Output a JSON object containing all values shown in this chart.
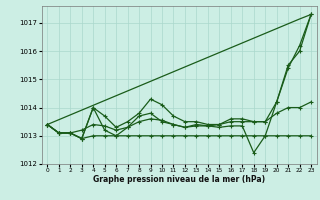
{
  "xlabel": "Graphe pression niveau de la mer (hPa)",
  "background_color": "#cceee4",
  "grid_color": "#aad8cc",
  "line_color": "#1a5c1a",
  "x": [
    0,
    1,
    2,
    3,
    4,
    5,
    6,
    7,
    8,
    9,
    10,
    11,
    12,
    13,
    14,
    15,
    16,
    17,
    18,
    19,
    20,
    21,
    22,
    23
  ],
  "series_diagonal": [
    1013.4,
    1013.57,
    1013.74,
    1013.91,
    1014.08,
    1014.25,
    1014.42,
    1014.59,
    1014.76,
    1014.93,
    1015.1,
    1015.27,
    1015.44,
    1015.61,
    1015.78,
    1015.95,
    1016.12,
    1016.29,
    1016.46,
    1016.63,
    1016.8,
    1016.97,
    1017.14,
    1017.3
  ],
  "series_upper": [
    1013.4,
    1013.1,
    1013.1,
    1012.9,
    1014.0,
    1013.7,
    1013.3,
    1013.5,
    1013.8,
    1014.3,
    1014.1,
    1013.7,
    1013.5,
    1013.5,
    1013.4,
    1013.4,
    1013.6,
    1013.6,
    1013.5,
    1013.5,
    1014.2,
    1015.4,
    1016.2,
    1017.3
  ],
  "series_mid": [
    1013.4,
    1013.1,
    1013.1,
    1013.2,
    1013.4,
    1013.35,
    1013.2,
    1013.3,
    1013.5,
    1013.6,
    1013.55,
    1013.4,
    1013.3,
    1013.4,
    1013.35,
    1013.4,
    1013.5,
    1013.5,
    1013.5,
    1013.5,
    1013.8,
    1014.0,
    1014.0,
    1014.2
  ],
  "series_lower": [
    1013.4,
    1013.1,
    1013.1,
    1012.9,
    1013.0,
    1013.0,
    1013.0,
    1013.0,
    1013.0,
    1013.0,
    1013.0,
    1013.0,
    1013.0,
    1013.0,
    1013.0,
    1013.0,
    1013.0,
    1013.0,
    1013.0,
    1013.0,
    1013.0,
    1013.0,
    1013.0,
    1013.0
  ],
  "series_dip": [
    1013.4,
    1013.1,
    1013.1,
    1012.9,
    1014.0,
    1013.2,
    1013.0,
    1013.3,
    1013.7,
    1013.8,
    1013.5,
    1013.4,
    1013.3,
    1013.35,
    1013.35,
    1013.3,
    1013.35,
    1013.35,
    1012.4,
    1013.0,
    1014.2,
    1015.5,
    1016.0,
    1017.3
  ],
  "ylim": [
    1012.0,
    1017.6
  ],
  "yticks": [
    1012,
    1013,
    1014,
    1015,
    1016,
    1017
  ],
  "xticks": [
    0,
    1,
    2,
    3,
    4,
    5,
    6,
    7,
    8,
    9,
    10,
    11,
    12,
    13,
    14,
    15,
    16,
    17,
    18,
    19,
    20,
    21,
    22,
    23
  ]
}
